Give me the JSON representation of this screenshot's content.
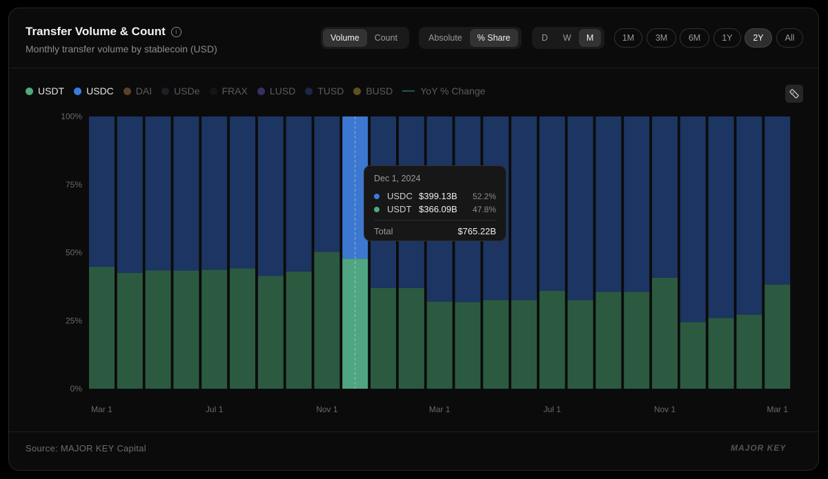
{
  "header": {
    "title": "Transfer Volume & Count",
    "subtitle": "Monthly transfer volume by stablecoin (USD)",
    "info_icon": "i"
  },
  "controls": {
    "metric": [
      {
        "label": "Volume",
        "active": true
      },
      {
        "label": "Count",
        "active": false
      }
    ],
    "mode": [
      {
        "label": "Absolute",
        "active": false
      },
      {
        "label": "% Share",
        "active": true
      }
    ],
    "granularity": [
      {
        "label": "D",
        "active": false
      },
      {
        "label": "W",
        "active": false
      },
      {
        "label": "M",
        "active": true
      }
    ],
    "ranges": [
      {
        "label": "1M",
        "active": false
      },
      {
        "label": "3M",
        "active": false
      },
      {
        "label": "6M",
        "active": false
      },
      {
        "label": "1Y",
        "active": false
      },
      {
        "label": "2Y",
        "active": true
      },
      {
        "label": "All",
        "active": false
      }
    ]
  },
  "legend": [
    {
      "label": "USDT",
      "color": "#4dab7e",
      "active": true,
      "kind": "dot"
    },
    {
      "label": "USDC",
      "color": "#3b7be0",
      "active": true,
      "kind": "dot"
    },
    {
      "label": "DAI",
      "color": "#5a4326",
      "active": false,
      "kind": "dot"
    },
    {
      "label": "USDe",
      "color": "#1e1e26",
      "active": false,
      "kind": "dot"
    },
    {
      "label": "FRAX",
      "color": "#151515",
      "active": false,
      "kind": "dot"
    },
    {
      "label": "LUSD",
      "color": "#3a2f63",
      "active": false,
      "kind": "dot"
    },
    {
      "label": "TUSD",
      "color": "#1c2744",
      "active": false,
      "kind": "dot"
    },
    {
      "label": "BUSD",
      "color": "#5e5023",
      "active": false,
      "kind": "dot"
    },
    {
      "label": "YoY % Change",
      "color": "#1e5a5a",
      "active": false,
      "kind": "line"
    }
  ],
  "chart_data": {
    "type": "bar",
    "stacked": true,
    "y_format": "percent",
    "ylim": [
      0,
      100
    ],
    "yticks": [
      "0%",
      "25%",
      "50%",
      "75%",
      "100%"
    ],
    "x_tick_labels": [
      "Mar 1",
      "Jul 1",
      "Nov 1",
      "Mar 1",
      "Jul 1",
      "Nov 1",
      "Mar 1"
    ],
    "x_tick_bar_index": [
      0,
      4,
      8,
      12,
      16,
      20,
      24
    ],
    "highlight_index": 9,
    "series": [
      {
        "name": "USDT",
        "color": "#2b5a41",
        "highlight_color": "#4fa680",
        "values": [
          44.8,
          42.6,
          43.5,
          43.4,
          43.7,
          44.2,
          41.4,
          43.1,
          50.3,
          47.8,
          37.0,
          37.0,
          32.0,
          31.8,
          32.6,
          32.6,
          36.0,
          32.6,
          35.6,
          35.6,
          40.8,
          24.5,
          26.0,
          27.2,
          38.3
        ]
      },
      {
        "name": "USDC",
        "color": "#1c3562",
        "highlight_color": "#3c78cf",
        "values": [
          55.2,
          57.4,
          56.5,
          56.6,
          56.3,
          55.8,
          58.6,
          56.9,
          49.7,
          52.2,
          63.0,
          63.0,
          68.0,
          68.2,
          67.4,
          67.4,
          64.0,
          67.4,
          64.4,
          64.4,
          59.2,
          75.5,
          74.0,
          72.8,
          61.7
        ]
      }
    ]
  },
  "tooltip": {
    "date": "Dec 1, 2024",
    "rows": [
      {
        "name": "USDC",
        "value": "$399.13B",
        "pct": "52.2%",
        "color": "#3b7be0"
      },
      {
        "name": "USDT",
        "value": "$366.09B",
        "pct": "47.8%",
        "color": "#4dab7e"
      }
    ],
    "total_label": "Total",
    "total_value": "$765.22B"
  },
  "footer": {
    "source": "Source: MAJOR KEY Capital",
    "brand": "MAJOR KEY"
  }
}
